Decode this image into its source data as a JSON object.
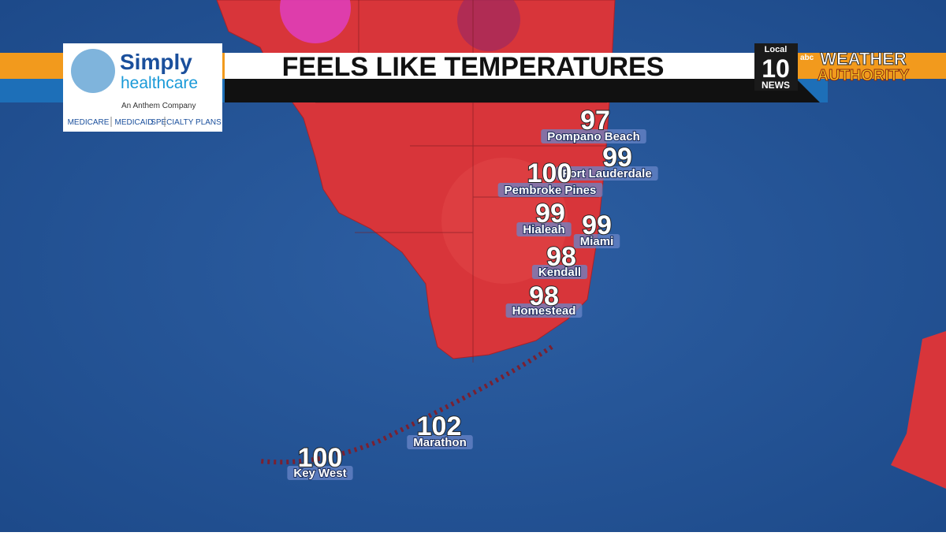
{
  "header": {
    "title": "FEELS LIKE TEMPERATURES"
  },
  "sponsor": {
    "name_line1": "Simply",
    "name_line2": "healthcare",
    "tagline": "An Anthem Company",
    "plans": [
      "MEDICARE",
      "MEDICAID",
      "SPECIALTY PLANS"
    ]
  },
  "station": {
    "local": "Local",
    "number": "10",
    "news": "NEWS",
    "network": "abc",
    "brand_line1": "WEATHER",
    "brand_line2": "AUTHORITY"
  },
  "locations": [
    {
      "name": "Pompano Beach",
      "temperature": 97
    },
    {
      "name": "Fort Lauderdale",
      "temperature": 99
    },
    {
      "name": "Pembroke Pines",
      "temperature": 100
    },
    {
      "name": "Hialeah",
      "temperature": 99
    },
    {
      "name": "Miami",
      "temperature": 99
    },
    {
      "name": "Kendall",
      "temperature": 98
    },
    {
      "name": "Homestead",
      "temperature": 98
    },
    {
      "name": "Marathon",
      "temperature": 102
    },
    {
      "name": "Key West",
      "temperature": 100
    }
  ]
}
